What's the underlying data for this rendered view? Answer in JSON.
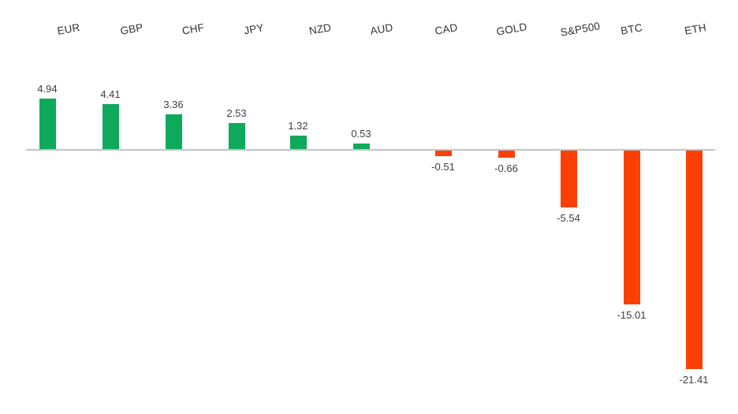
{
  "chart_data": {
    "type": "bar",
    "title": "",
    "xlabel": "",
    "ylabel": "",
    "categories": [
      "EUR",
      "GBP",
      "CHF",
      "JPY",
      "NZD",
      "AUD",
      "CAD",
      "GOLD",
      "S&P500",
      "BTC",
      "ETH"
    ],
    "values": [
      4.94,
      4.41,
      3.36,
      2.53,
      1.32,
      0.53,
      -0.51,
      -0.66,
      -5.54,
      -15.01,
      -21.41
    ],
    "value_labels": [
      "4.94",
      "4.41",
      "3.36",
      "2.53",
      "1.32",
      "0.53",
      "-0.51",
      "-0.66",
      "-5.54",
      "-15.01",
      "-21.41"
    ],
    "ylim": [
      -24,
      7
    ],
    "grid": false,
    "legend": false,
    "data_labels": true,
    "category_label_rotation_deg": -10,
    "positive_color": "#0fa95c",
    "negative_color": "#fc4005",
    "axis_line_color": "#c3c3c3",
    "label_color": "#3f3f3f",
    "background_color": "#ffffff"
  }
}
